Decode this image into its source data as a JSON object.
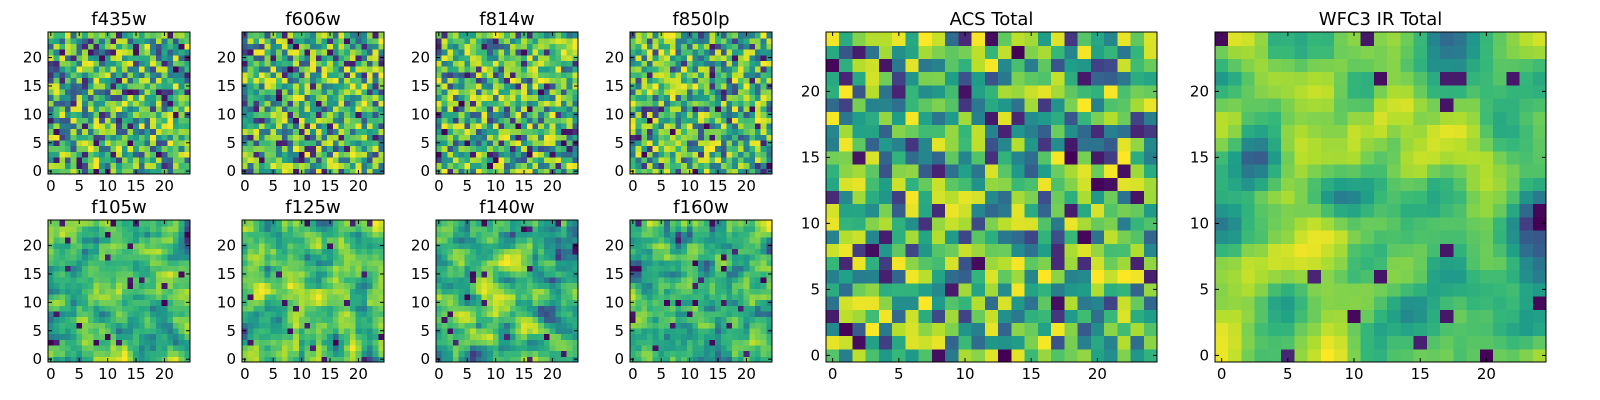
{
  "chart_data": {
    "type": "heatmap",
    "colormap": "viridis",
    "grid_size": 25,
    "value_range": [
      0,
      1
    ],
    "panels": [
      {
        "title": "f435w",
        "xticks": [
          0,
          5,
          10,
          15,
          20
        ],
        "yticks": [
          0,
          5,
          10,
          15,
          20
        ],
        "seed": 11,
        "smooth": 0
      },
      {
        "title": "f606w",
        "xticks": [
          0,
          5,
          10,
          15,
          20
        ],
        "yticks": [
          0,
          5,
          10,
          15,
          20
        ],
        "seed": 23,
        "smooth": 0
      },
      {
        "title": "f814w",
        "xticks": [
          0,
          5,
          10,
          15,
          20
        ],
        "yticks": [
          0,
          5,
          10,
          15,
          20
        ],
        "seed": 37,
        "smooth": 0
      },
      {
        "title": "f850lp",
        "xticks": [
          0,
          5,
          10,
          15,
          20
        ],
        "yticks": [
          0,
          5,
          10,
          15,
          20
        ],
        "seed": 41,
        "smooth": 0
      },
      {
        "title": "f105w",
        "xticks": [
          0,
          5,
          10,
          15,
          20
        ],
        "yticks": [
          0,
          5,
          10,
          15,
          20
        ],
        "seed": 53,
        "smooth": 1
      },
      {
        "title": "f125w",
        "xticks": [
          0,
          5,
          10,
          15,
          20
        ],
        "yticks": [
          0,
          5,
          10,
          15,
          20
        ],
        "seed": 67,
        "smooth": 1
      },
      {
        "title": "f140w",
        "xticks": [
          0,
          5,
          10,
          15,
          20
        ],
        "yticks": [
          0,
          5,
          10,
          15,
          20
        ],
        "seed": 71,
        "smooth": 1
      },
      {
        "title": "f160w",
        "xticks": [
          0,
          5,
          10,
          15,
          20
        ],
        "yticks": [
          0,
          5,
          10,
          15,
          20
        ],
        "seed": 89,
        "smooth": 1
      },
      {
        "title": "ACS Total",
        "xticks": [
          0,
          5,
          10,
          15,
          20
        ],
        "yticks": [
          0,
          5,
          10,
          15,
          20
        ],
        "seed": 97,
        "smooth": 0
      },
      {
        "title": "WFC3 IR Total",
        "xticks": [
          0,
          5,
          10,
          15,
          20
        ],
        "yticks": [
          0,
          5,
          10,
          15,
          20
        ],
        "seed": 113,
        "smooth": 2
      }
    ]
  }
}
